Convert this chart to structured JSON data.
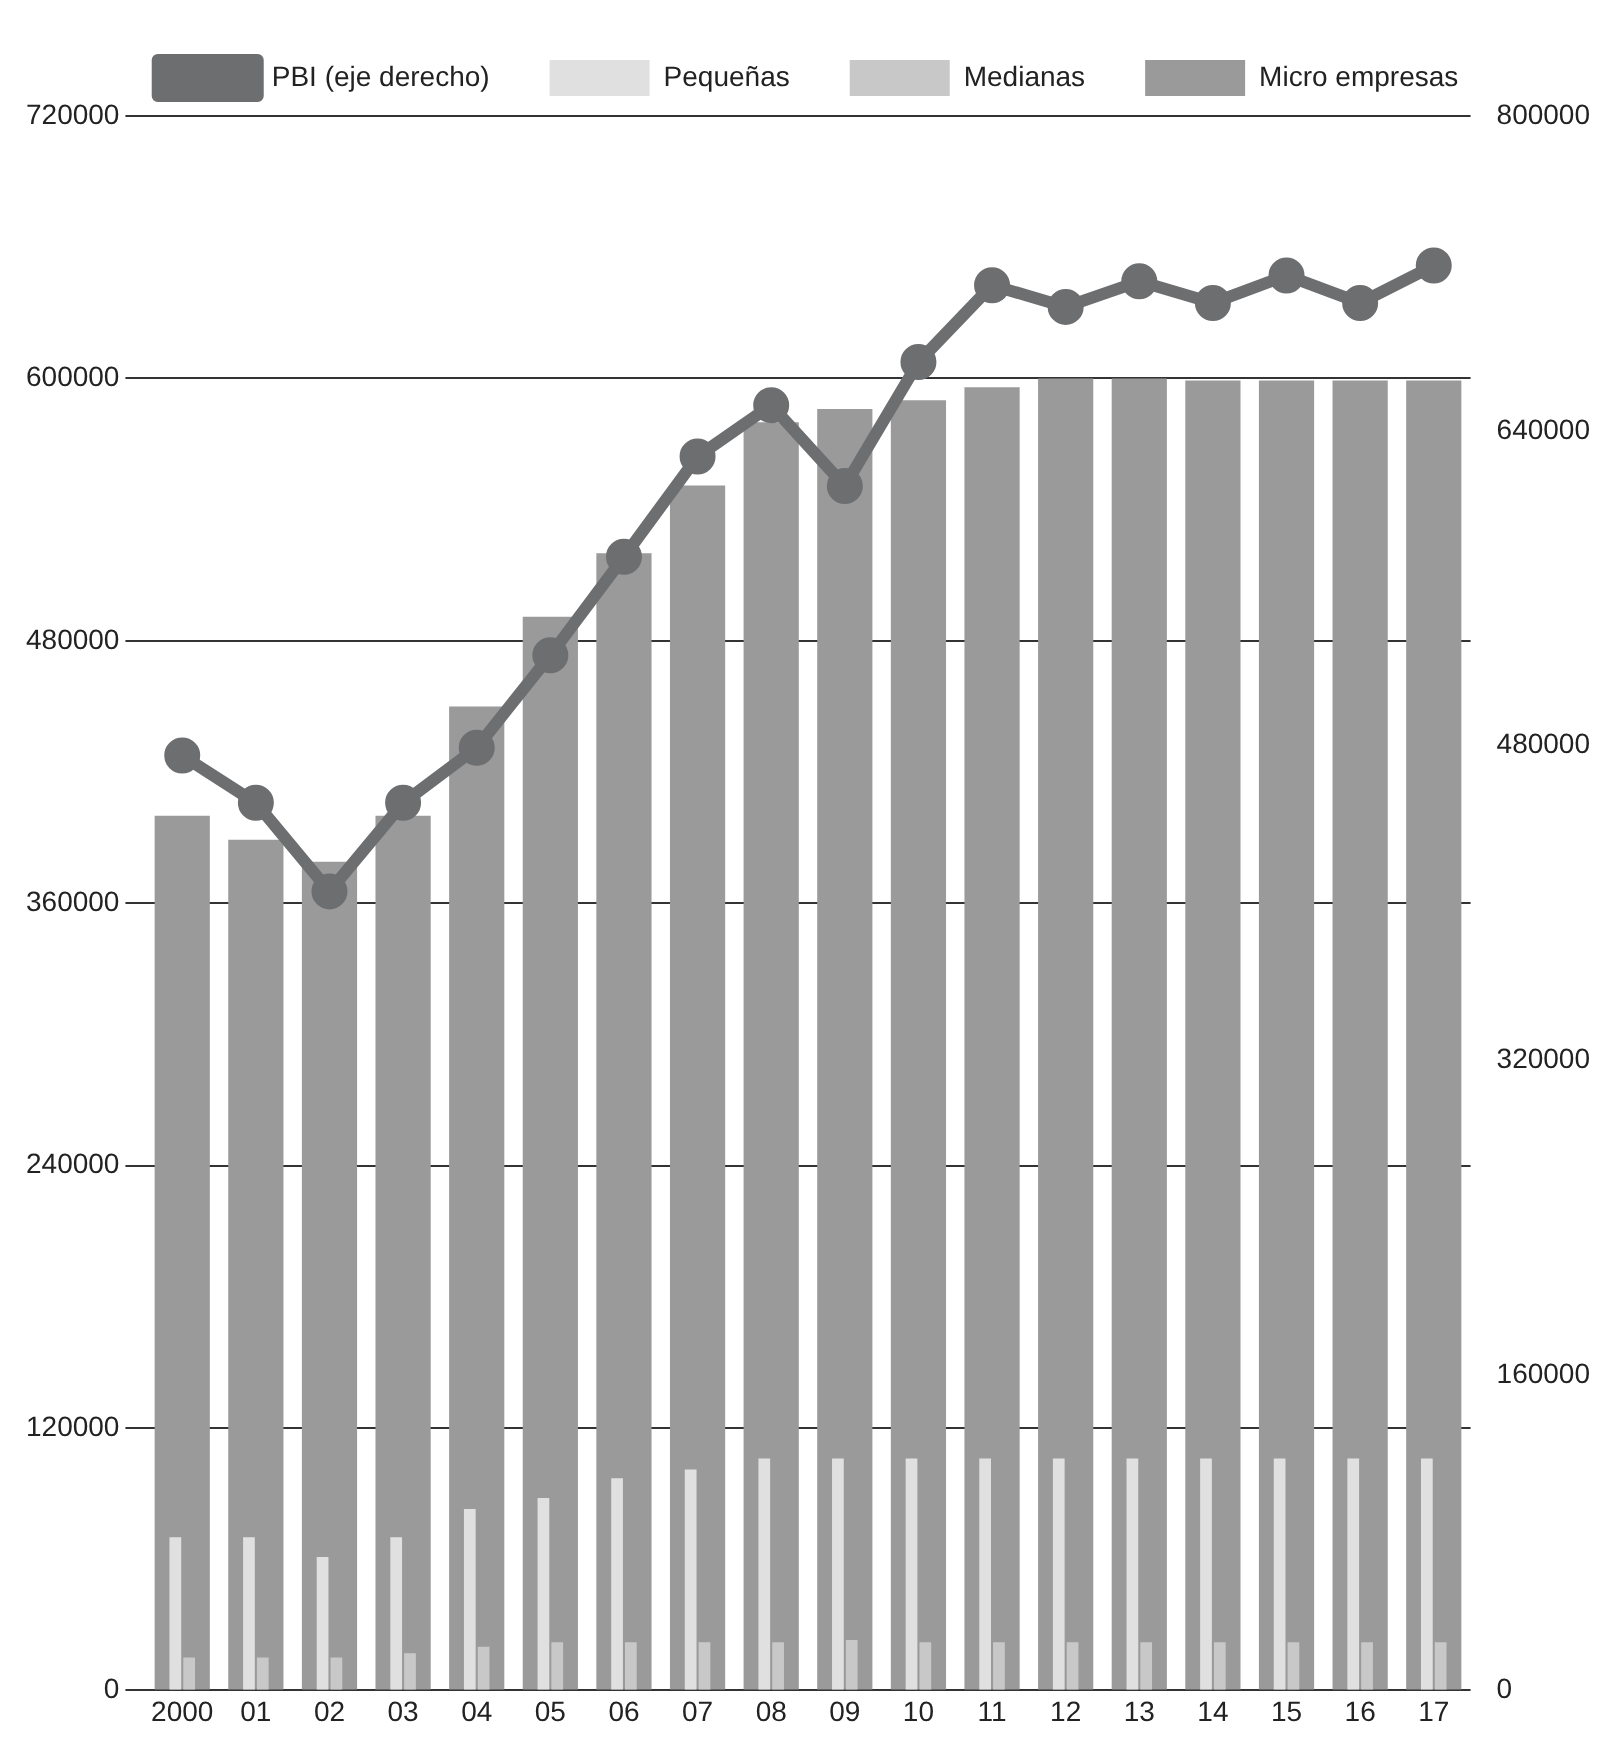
{
  "chart_data": {
    "type": "bar",
    "categories": [
      "2000",
      "01",
      "02",
      "03",
      "04",
      "05",
      "06",
      "07",
      "08",
      "09",
      "10",
      "11",
      "12",
      "13",
      "14",
      "15",
      "16",
      "17"
    ],
    "series": [
      {
        "name": "Micro empresas",
        "color": "#9a9a9b",
        "values": [
          400000,
          389000,
          379000,
          400000,
          450000,
          491000,
          520000,
          551000,
          580000,
          586000,
          590000,
          596000,
          600000,
          600000,
          599000,
          599000,
          599000,
          599000
        ]
      },
      {
        "name": "Pequeñas",
        "color": "#e0e0e1",
        "values": [
          70000,
          70000,
          61000,
          70000,
          83000,
          88000,
          97000,
          101000,
          106000,
          106000,
          106000,
          106000,
          106000,
          106000,
          106000,
          106000,
          106000,
          106000
        ]
      },
      {
        "name": "Medianas",
        "color": "#c8c8c9",
        "values": [
          15000,
          15000,
          15000,
          17000,
          20000,
          22000,
          22000,
          22000,
          22000,
          23000,
          22000,
          22000,
          22000,
          22000,
          22000,
          22000,
          22000,
          22000
        ]
      },
      {
        "name": "PBI (eje derecho)",
        "type": "line",
        "axis": "y2",
        "color": "#6d6e70",
        "marker": "circle",
        "values": [
          475000,
          451000,
          406000,
          451000,
          479000,
          526000,
          576000,
          627000,
          653000,
          612000,
          675000,
          714000,
          703000,
          716000,
          705000,
          719000,
          705000,
          724000
        ]
      }
    ],
    "ylim": [
      0,
      720000
    ],
    "yticks": [
      0,
      120000,
      240000,
      360000,
      480000,
      600000,
      720000
    ],
    "y2lim": [
      0,
      800000
    ],
    "y2ticks": [
      0,
      160000,
      320000,
      480000,
      640000,
      800000
    ],
    "grid": "y",
    "legend": "top"
  }
}
